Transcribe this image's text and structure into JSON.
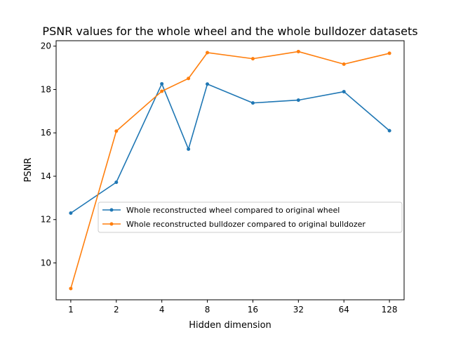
{
  "chart_data": {
    "type": "line",
    "title": "PSNR values for the whole wheel and the whole bulldozer datasets",
    "xlabel": "Hidden dimension",
    "ylabel": "PSNR",
    "x_scale": "log2",
    "x_ticks": [
      1,
      2,
      4,
      8,
      16,
      32,
      64,
      128
    ],
    "x_tick_labels": [
      "1",
      "2",
      "4",
      "8",
      "16",
      "32",
      "64",
      "128"
    ],
    "y_ticks": [
      10,
      12,
      14,
      16,
      18,
      20
    ],
    "y_tick_labels": [
      "10",
      "12",
      "14",
      "16",
      "18",
      "20"
    ],
    "xlim": [
      0.8,
      160
    ],
    "ylim": [
      8.3,
      20.25
    ],
    "grid": false,
    "legend_position": "center-right",
    "series": [
      {
        "name": "Whole reconstructed wheel compared to original wheel",
        "color": "#1f77b4",
        "x": [
          1,
          2,
          4,
          6,
          8,
          16,
          32,
          64,
          128
        ],
        "y": [
          12.3,
          13.72,
          18.26,
          15.25,
          18.25,
          17.38,
          17.51,
          17.9,
          16.1
        ]
      },
      {
        "name": "Whole reconstructed bulldozer compared to original bulldozer",
        "color": "#ff7f0e",
        "x": [
          1,
          2,
          4,
          6,
          8,
          16,
          32,
          64,
          128
        ],
        "y": [
          8.82,
          16.08,
          17.92,
          18.51,
          19.7,
          19.42,
          19.75,
          19.17,
          19.67
        ]
      }
    ]
  }
}
